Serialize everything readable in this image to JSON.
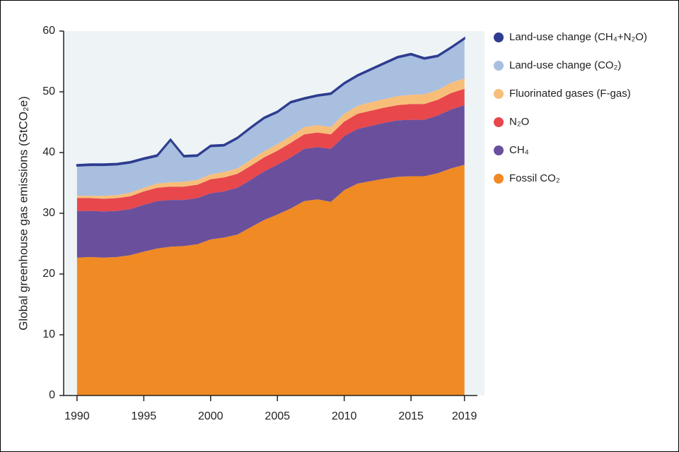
{
  "chart_data": {
    "type": "stacked-area",
    "y_label": "Global greenhouse gas emissions (GtCO₂e)",
    "x": [
      1990,
      1991,
      1992,
      1993,
      1994,
      1995,
      1996,
      1997,
      1998,
      1999,
      2000,
      2001,
      2002,
      2003,
      2004,
      2005,
      2006,
      2007,
      2008,
      2009,
      2010,
      2011,
      2012,
      2013,
      2014,
      2015,
      2016,
      2017,
      2018,
      2019
    ],
    "xlim": [
      1989,
      2020.5
    ],
    "xticks": [
      1990,
      1995,
      2000,
      2005,
      2010,
      2015,
      2019
    ],
    "ylim": [
      0,
      60
    ],
    "yticks": [
      0,
      10,
      20,
      30,
      40,
      50,
      60
    ],
    "legend": "right",
    "series": [
      {
        "name": "Fossil CO₂",
        "color": "#f08a24",
        "values": [
          22.7,
          22.8,
          22.7,
          22.8,
          23.1,
          23.7,
          24.2,
          24.5,
          24.6,
          24.9,
          25.7,
          26.0,
          26.5,
          27.7,
          28.9,
          29.8,
          30.8,
          32.0,
          32.3,
          31.9,
          33.8,
          34.9,
          35.3,
          35.7,
          36.0,
          36.1,
          36.1,
          36.6,
          37.4,
          38.0
        ]
      },
      {
        "name": "CH₄",
        "color": "#6a4f9c",
        "values": [
          7.7,
          7.6,
          7.6,
          7.6,
          7.6,
          7.7,
          7.8,
          7.7,
          7.6,
          7.6,
          7.6,
          7.6,
          7.7,
          7.8,
          8.0,
          8.2,
          8.4,
          8.6,
          8.6,
          8.7,
          8.9,
          9.0,
          9.1,
          9.2,
          9.3,
          9.3,
          9.3,
          9.5,
          9.7,
          9.8
        ]
      },
      {
        "name": "N₂O",
        "color": "#e8474c",
        "values": [
          2.1,
          2.1,
          2.1,
          2.1,
          2.1,
          2.2,
          2.2,
          2.2,
          2.2,
          2.2,
          2.3,
          2.3,
          2.3,
          2.3,
          2.3,
          2.3,
          2.4,
          2.4,
          2.4,
          2.4,
          2.4,
          2.5,
          2.5,
          2.5,
          2.5,
          2.6,
          2.6,
          2.6,
          2.7,
          2.7
        ]
      },
      {
        "name": "Fluorinated gases (F-gas)",
        "color": "#f7be7a",
        "values": [
          0.4,
          0.4,
          0.5,
          0.5,
          0.6,
          0.6,
          0.7,
          0.7,
          0.8,
          0.8,
          0.8,
          0.9,
          0.9,
          1.0,
          1.0,
          1.1,
          1.1,
          1.2,
          1.2,
          1.2,
          1.3,
          1.3,
          1.4,
          1.4,
          1.5,
          1.5,
          1.6,
          1.6,
          1.7,
          1.7
        ]
      },
      {
        "name": "Land-use change (CO₂)",
        "color": "#a8bfe0",
        "values": [
          4.9,
          5.0,
          5.0,
          5.0,
          4.9,
          4.7,
          4.5,
          6.9,
          4.1,
          3.9,
          4.6,
          4.3,
          4.9,
          5.2,
          5.4,
          5.2,
          5.5,
          4.6,
          4.8,
          5.4,
          4.9,
          4.9,
          5.3,
          5.8,
          6.3,
          6.6,
          5.8,
          5.5,
          5.7,
          6.5
        ]
      },
      {
        "name": "Land-use change (CH₄+N₂O)",
        "color": "#2e3d8f",
        "values": [
          0.2,
          0.2,
          0.2,
          0.2,
          0.2,
          0.2,
          0.2,
          0.2,
          0.2,
          0.2,
          0.2,
          0.2,
          0.2,
          0.2,
          0.2,
          0.2,
          0.2,
          0.2,
          0.2,
          0.2,
          0.2,
          0.2,
          0.2,
          0.2,
          0.2,
          0.2,
          0.2,
          0.2,
          0.2,
          0.2
        ]
      }
    ]
  }
}
